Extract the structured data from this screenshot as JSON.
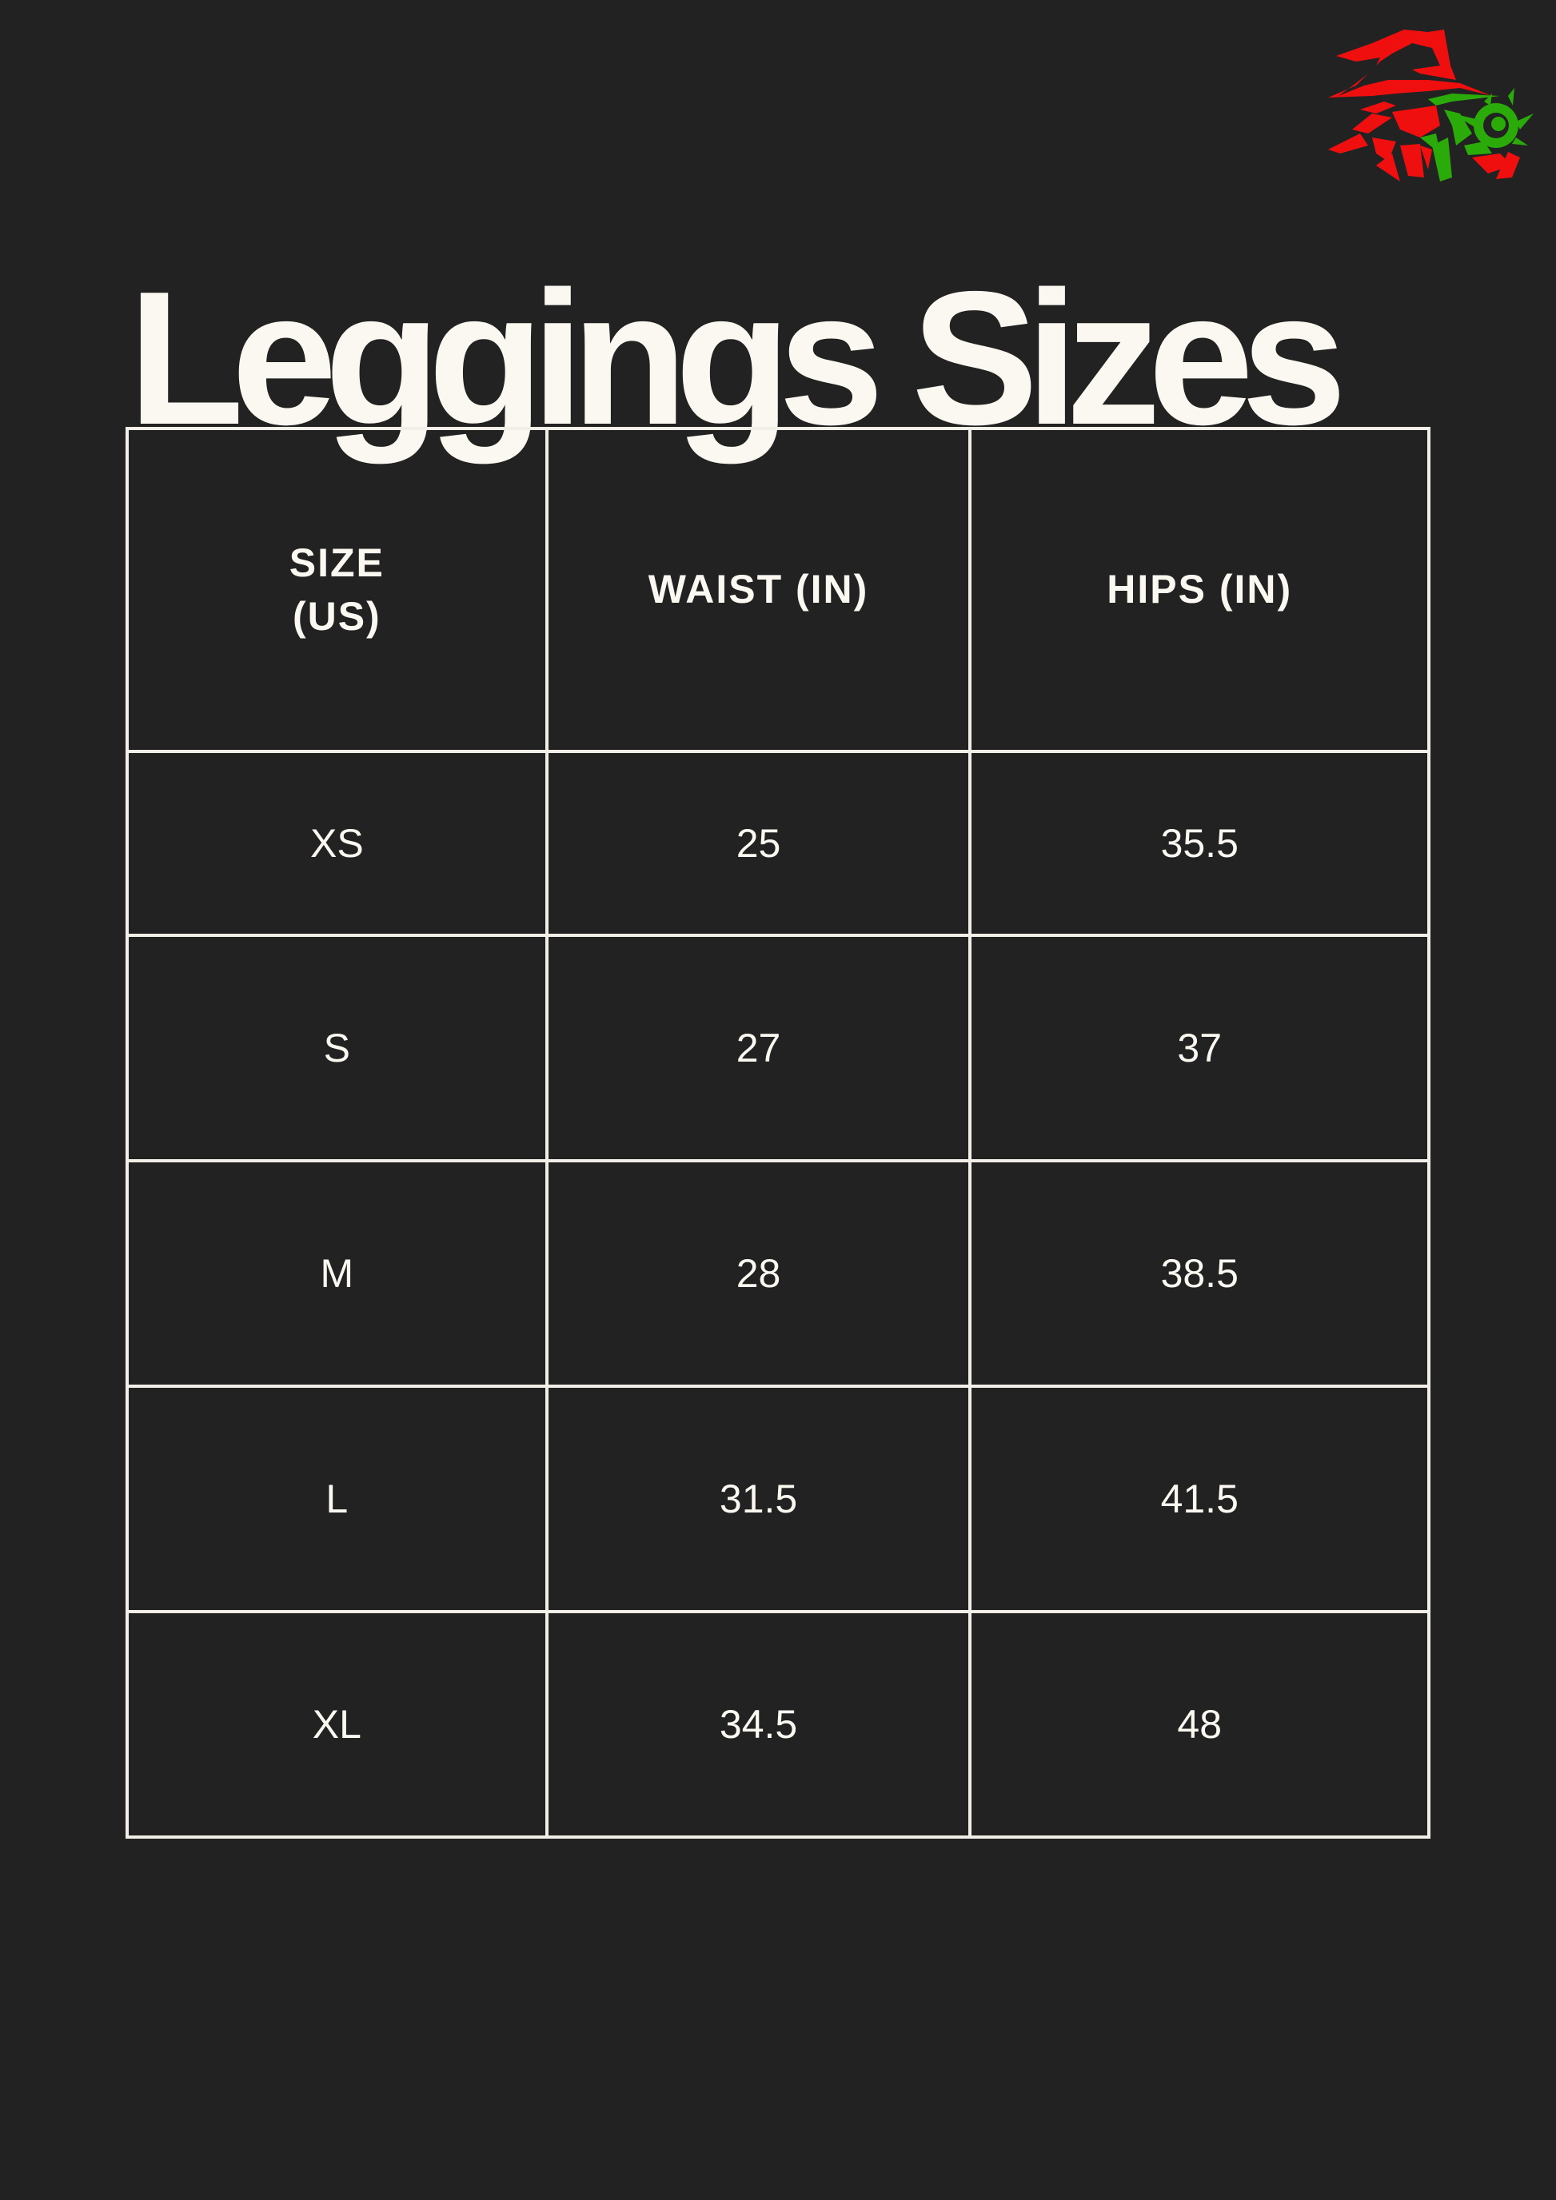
{
  "logo": {
    "name": "wizard-logo",
    "colors": {
      "primary": "#f00f0f",
      "secondary": "#2aab0a"
    }
  },
  "title": "Leggings Sizes",
  "table": {
    "headers": [
      [
        "SIZE",
        "(US)"
      ],
      [
        "WAIST (IN)"
      ],
      [
        "HIPS (IN)"
      ]
    ],
    "rows": [
      [
        "XS",
        "25",
        "35.5"
      ],
      [
        "S",
        "27",
        "37"
      ],
      [
        "M",
        "28",
        "38.5"
      ],
      [
        "L",
        "31.5",
        "41.5"
      ],
      [
        "XL",
        "34.5",
        "48"
      ]
    ]
  },
  "colors": {
    "background": "#222222",
    "text": "#fbf8f1",
    "border": "#f2efe9"
  }
}
